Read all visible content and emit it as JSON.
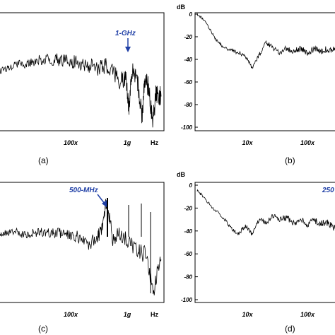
{
  "chart_data": [
    {
      "panel": "a",
      "type": "line",
      "caption": "(a)",
      "x_ticks": [
        "100x",
        "1g"
      ],
      "x_unit": "Hz",
      "annotation": "1-GHz",
      "line_color": "#000000",
      "annotation_color": "#1f3fa6",
      "grid": false,
      "x": [
        0.0,
        0.05,
        0.1,
        0.15,
        0.2,
        0.25,
        0.3,
        0.35,
        0.4,
        0.45,
        0.5,
        0.55,
        0.6,
        0.65,
        0.7,
        0.75,
        0.78,
        0.8,
        0.82,
        0.85,
        0.88,
        0.9,
        0.92,
        0.95,
        0.97,
        1.0
      ],
      "y": [
        0.55,
        0.58,
        0.62,
        0.6,
        0.64,
        0.66,
        0.66,
        0.66,
        0.65,
        0.64,
        0.62,
        0.6,
        0.58,
        0.6,
        0.55,
        0.45,
        0.5,
        0.2,
        0.55,
        0.5,
        0.1,
        0.45,
        0.4,
        0.05,
        0.35,
        0.3
      ]
    },
    {
      "panel": "b",
      "type": "line",
      "caption": "(b)",
      "y_unit": "dB",
      "y_ticks": [
        "0",
        "-20",
        "-40",
        "-60",
        "-80",
        "-100"
      ],
      "ylim": [
        -100,
        0
      ],
      "x_ticks": [
        "10x",
        "100x"
      ],
      "line_color": "#000000",
      "grid": false,
      "x": [
        0.0,
        0.05,
        0.1,
        0.15,
        0.2,
        0.25,
        0.3,
        0.35,
        0.4,
        0.45,
        0.5,
        0.55,
        0.6,
        0.65,
        0.7,
        0.75,
        0.8,
        0.85,
        0.9,
        0.95,
        1.0
      ],
      "y": [
        0,
        -5,
        -15,
        -25,
        -30,
        -32,
        -34,
        -38,
        -47,
        -36,
        -25,
        -30,
        -34,
        -30,
        -33,
        -30,
        -35,
        -30,
        -33,
        -31,
        -32
      ]
    },
    {
      "panel": "c",
      "type": "line",
      "caption": "(c)",
      "x_ticks": [
        "100x",
        "1g"
      ],
      "x_unit": "Hz",
      "annotation": "500-MHz",
      "line_color": "#000000",
      "annotation_color": "#1f3fa6",
      "grid": false,
      "x": [
        0.0,
        0.05,
        0.1,
        0.15,
        0.2,
        0.25,
        0.3,
        0.35,
        0.4,
        0.45,
        0.5,
        0.55,
        0.6,
        0.63,
        0.66,
        0.7,
        0.75,
        0.8,
        0.85,
        0.9,
        0.95,
        1.0
      ],
      "y": [
        0.6,
        0.6,
        0.62,
        0.58,
        0.6,
        0.61,
        0.6,
        0.6,
        0.6,
        0.58,
        0.56,
        0.5,
        0.55,
        0.62,
        0.9,
        0.55,
        0.6,
        0.5,
        0.45,
        0.4,
        0.05,
        0.35
      ]
    },
    {
      "panel": "d",
      "type": "line",
      "caption": "(d)",
      "y_unit": "dB",
      "y_ticks": [
        "0",
        "-20",
        "-40",
        "-60",
        "-80",
        "-100"
      ],
      "ylim": [
        -100,
        0
      ],
      "x_ticks": [
        "10x",
        "100x"
      ],
      "annotation": "250",
      "line_color": "#000000",
      "annotation_color": "#1f3fa6",
      "grid": false,
      "x": [
        0.0,
        0.03,
        0.1,
        0.2,
        0.25,
        0.3,
        0.35,
        0.4,
        0.45,
        0.5,
        0.55,
        0.6,
        0.65,
        0.7,
        0.75,
        0.8,
        0.85,
        0.9,
        0.95,
        1.0
      ],
      "y": [
        -5,
        -8,
        -18,
        -30,
        -38,
        -43,
        -35,
        -43,
        -30,
        -33,
        -27,
        -30,
        -28,
        -33,
        -30,
        -35,
        -30,
        -34,
        -32,
        -38
      ]
    }
  ]
}
